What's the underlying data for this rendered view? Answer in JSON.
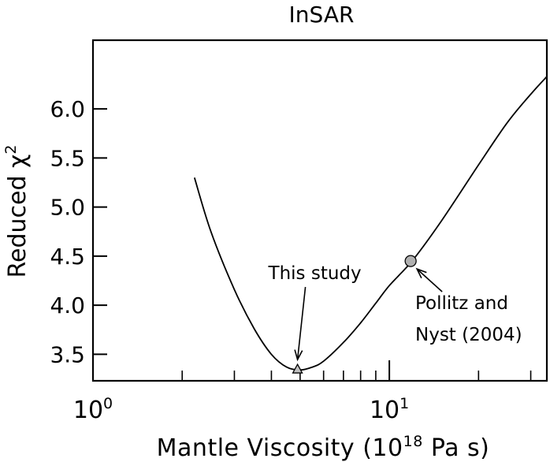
{
  "chart_data": {
    "type": "line",
    "title": "InSAR",
    "xlabel": {
      "pre": "Mantle Viscosity  (10",
      "sup": "18",
      "post": " Pa  s)"
    },
    "ylabel": {
      "pre": "Reduced  χ",
      "sup": "2"
    },
    "x_scale": "log",
    "xlim": [
      1,
      34
    ],
    "ylim": [
      3.23,
      6.7
    ],
    "x_ticks_major": [
      {
        "base": "10",
        "exp": "0",
        "value": 1
      },
      {
        "base": "10",
        "exp": "1",
        "value": 10
      }
    ],
    "x_ticks_minor": [
      2,
      3,
      4,
      5,
      6,
      7,
      8,
      9,
      20,
      30
    ],
    "y_ticks": [
      "3.5",
      "4.0",
      "4.5",
      "5.0",
      "5.5",
      "6.0"
    ],
    "series": [
      {
        "x": [
          2.2,
          2.5,
          3.0,
          3.5,
          4.0,
          4.5,
          5.0,
          5.5,
          6.0,
          7.0,
          8.0,
          9.0,
          10.0,
          12.0,
          15.0,
          20.0,
          25.0,
          30.0,
          34.0
        ],
        "y": [
          5.3,
          4.75,
          4.16,
          3.76,
          3.5,
          3.37,
          3.34,
          3.37,
          3.43,
          3.62,
          3.82,
          4.02,
          4.2,
          4.46,
          4.86,
          5.43,
          5.86,
          6.15,
          6.33
        ]
      }
    ],
    "markers": [
      {
        "name": "This study",
        "shape": "triangle",
        "x": 4.9,
        "y": 3.35,
        "color": "#c0c0c0"
      },
      {
        "name": "Pollitz and Nyst (2004)",
        "shape": "circle",
        "x": 11.8,
        "y": 4.45,
        "color": "#b0b0b0"
      }
    ],
    "annotations": [
      {
        "lines": [
          "This study"
        ],
        "target": "This study"
      },
      {
        "lines": [
          "Pollitz  and",
          "Nyst  (2004)"
        ],
        "target": "Pollitz and Nyst (2004)"
      }
    ]
  }
}
